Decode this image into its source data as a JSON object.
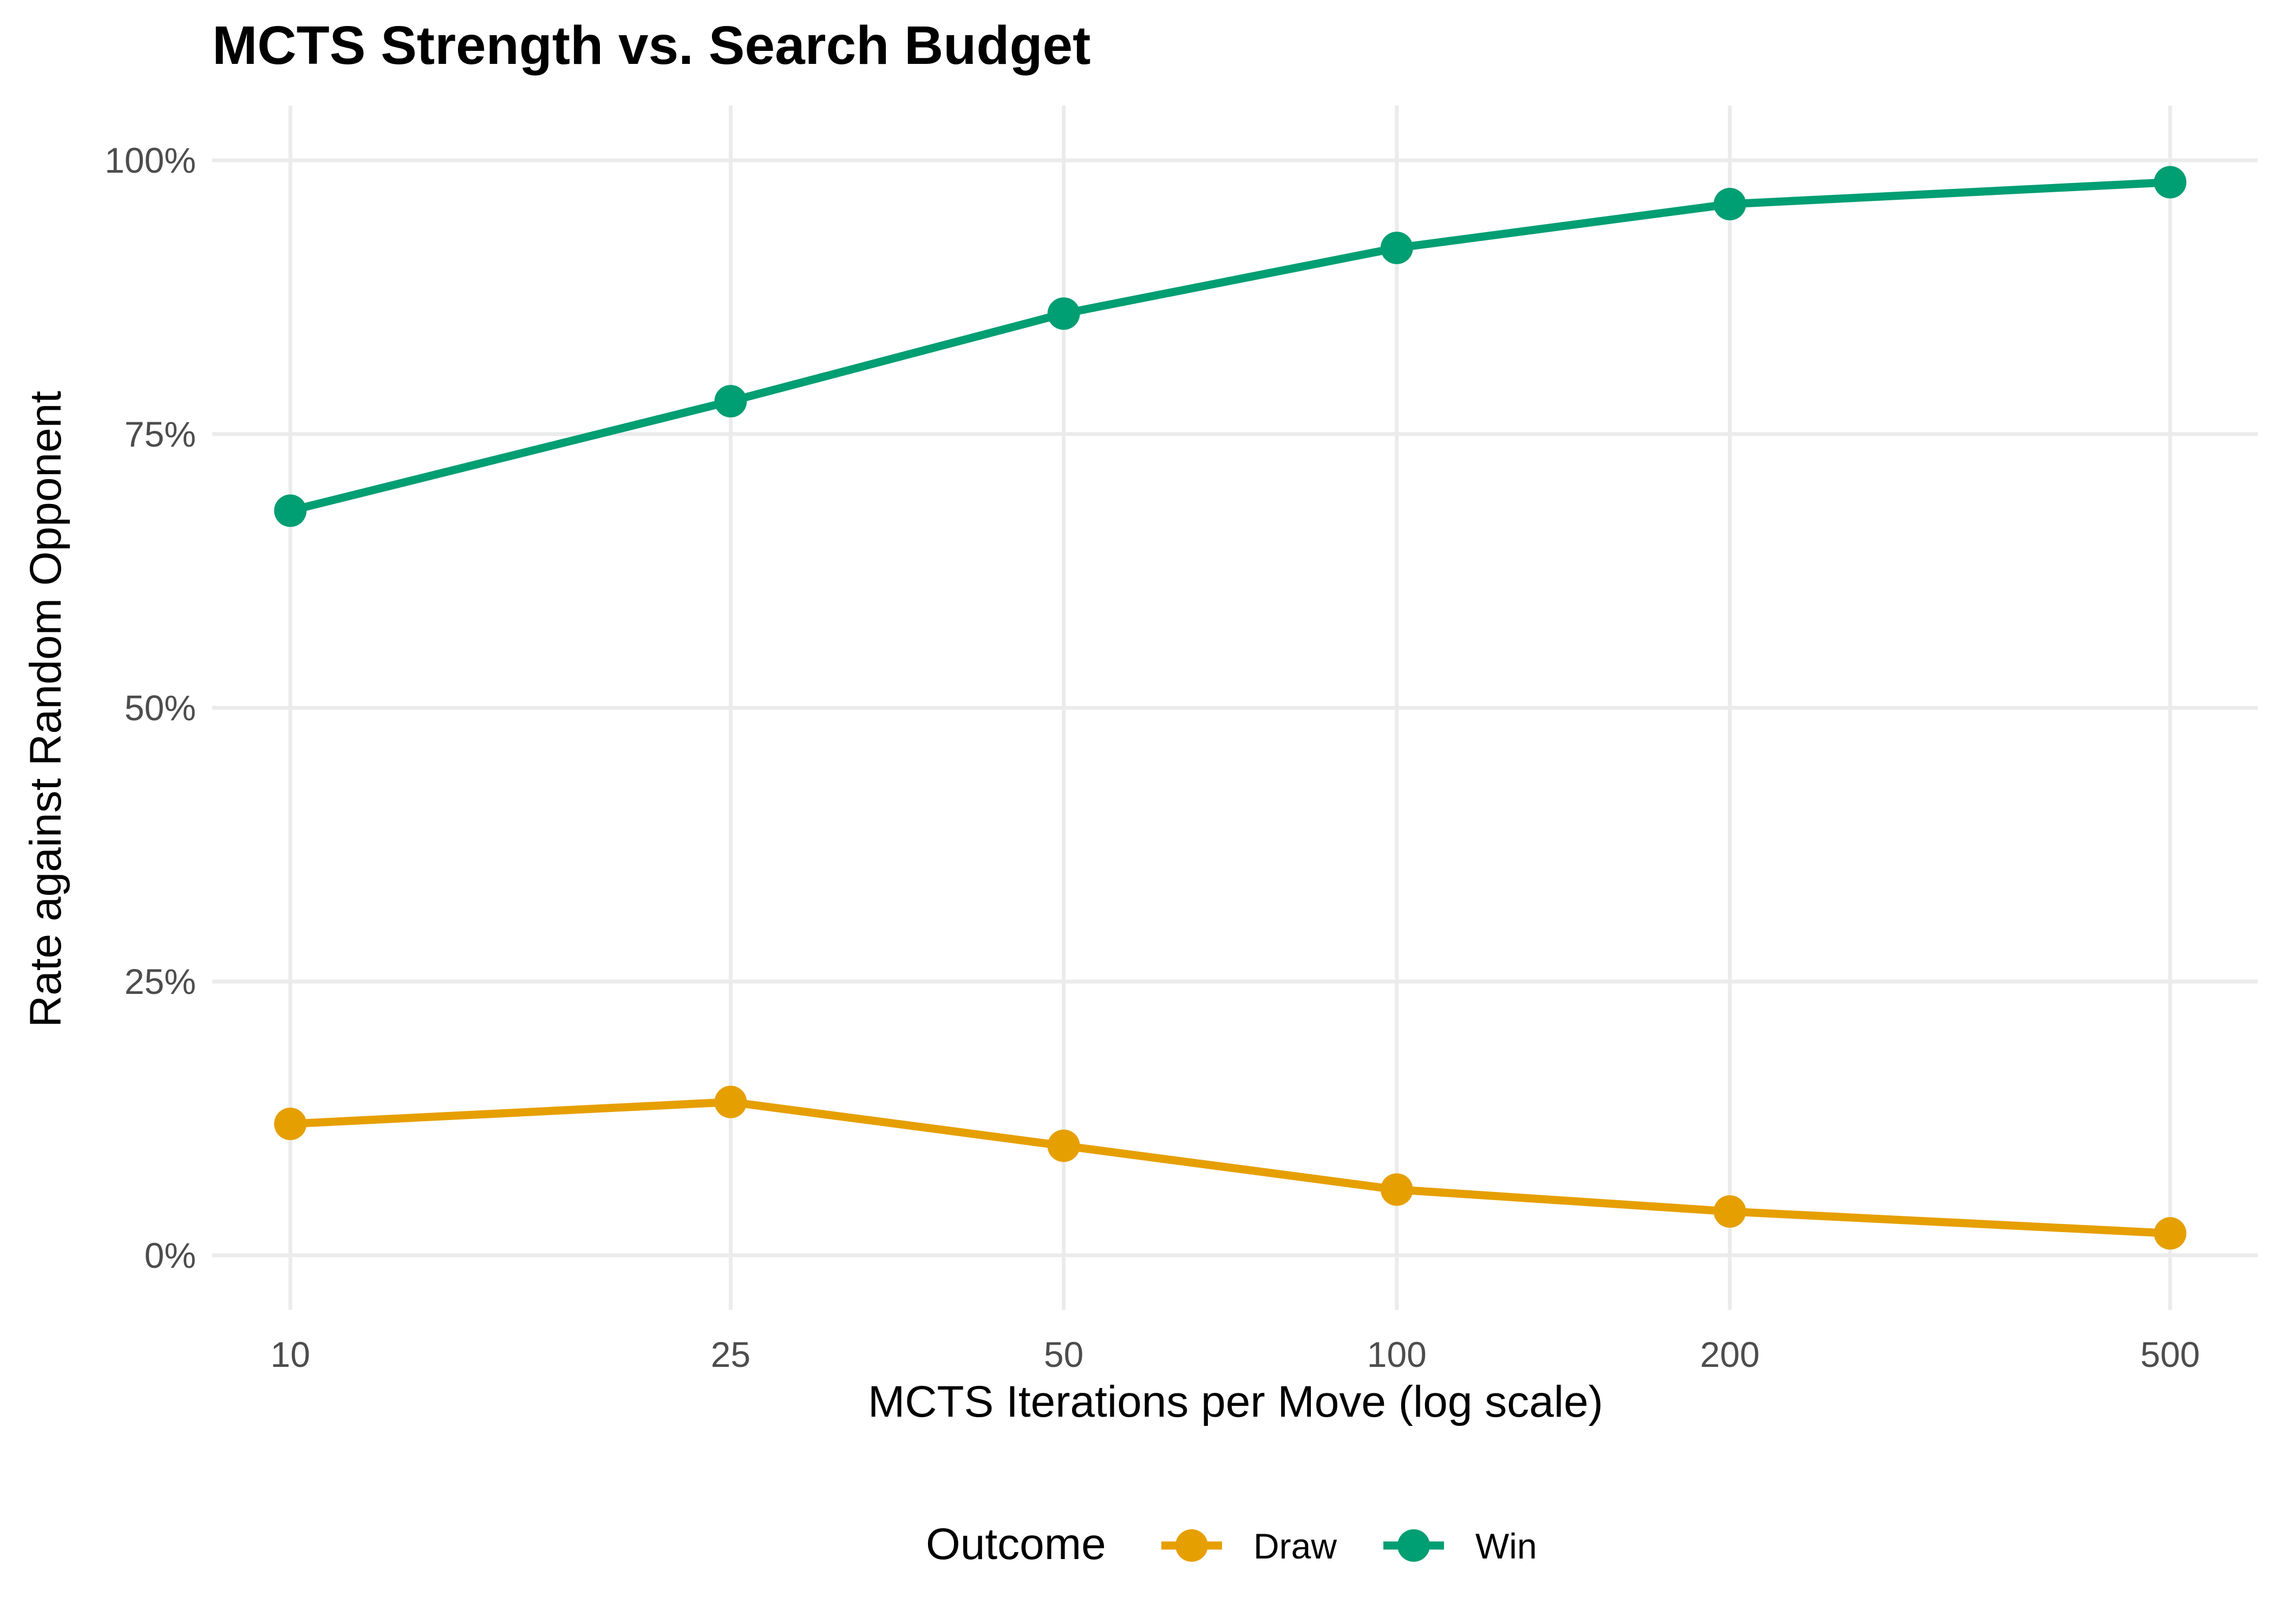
{
  "chart_data": {
    "type": "line",
    "title": "MCTS Strength vs. Search Budget",
    "xlabel": "MCTS Iterations per Move (log scale)",
    "ylabel": "Rate against Random Opponent",
    "x_scale": "log",
    "x": [
      10,
      25,
      50,
      100,
      200,
      500
    ],
    "x_tick_labels": [
      "10",
      "25",
      "50",
      "100",
      "200",
      "500"
    ],
    "y_ticks": [
      0,
      0.25,
      0.5,
      0.75,
      1.0
    ],
    "y_tick_labels": [
      "0%",
      "25%",
      "50%",
      "75%",
      "100%"
    ],
    "ylim": [
      -0.05,
      1.05
    ],
    "xlim": [
      8.5,
      600
    ],
    "grid": true,
    "legend": {
      "title": "Outcome",
      "position": "bottom"
    },
    "series": [
      {
        "name": "Draw",
        "color": "#E69F00",
        "values": [
          0.12,
          0.14,
          0.1,
          0.06,
          0.04,
          0.02
        ]
      },
      {
        "name": "Win",
        "color": "#009E73",
        "values": [
          0.68,
          0.78,
          0.86,
          0.92,
          0.96,
          0.98
        ]
      }
    ]
  }
}
